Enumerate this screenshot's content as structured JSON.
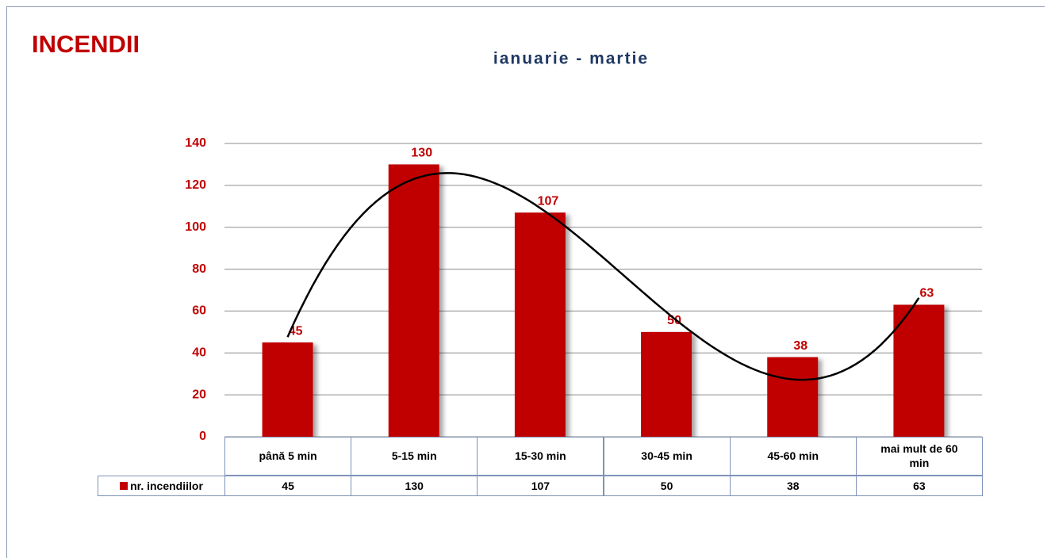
{
  "heading": "INCENDII",
  "chart_data": {
    "type": "bar",
    "title": "ianuarie - martie",
    "categories": [
      "până 5 min",
      "5-15 min",
      "15-30 min",
      "30-45 min",
      "45-60 min",
      "mai mult de 60 min"
    ],
    "series": [
      {
        "name": "nr. incendiilor",
        "color": "#c00000",
        "values": [
          45,
          130,
          107,
          50,
          38,
          63
        ]
      }
    ],
    "ylim": [
      0,
      140
    ],
    "yticks": [
      0,
      20,
      40,
      60,
      80,
      100,
      120,
      140
    ],
    "grid": true,
    "trendline": {
      "type": "polynomial",
      "order": 3
    }
  }
}
